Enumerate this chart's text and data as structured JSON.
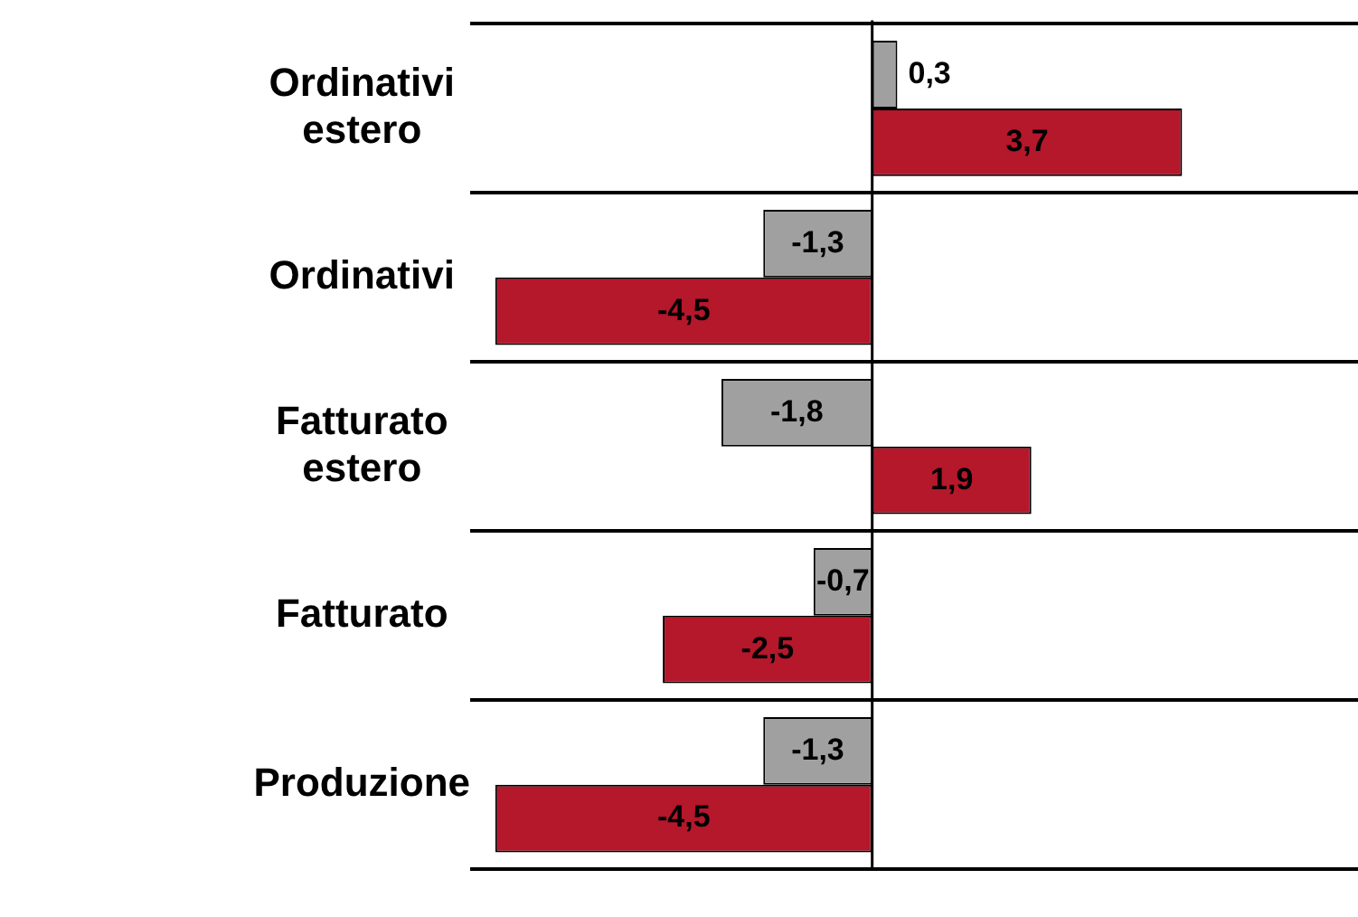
{
  "chart_data": {
    "type": "bar",
    "orientation": "horizontal",
    "categories": [
      "Ordinativi estero",
      "Ordinativi",
      "Fatturato estero",
      "Fatturato",
      "Produzione"
    ],
    "series": [
      {
        "color": "#a0a0a0",
        "values": [
          0.3,
          -1.3,
          -1.8,
          -0.7,
          -1.3
        ],
        "value_labels": [
          "0,3",
          "-1,3",
          "-1,8",
          "-0,7",
          "-1,3"
        ]
      },
      {
        "color": "#b5172b",
        "values": [
          3.7,
          -4.5,
          1.9,
          -2.5,
          -4.5
        ],
        "value_labels": [
          "3,7",
          "-4,5",
          "1,9",
          "-2,5",
          "-4,5"
        ]
      }
    ],
    "xlim": [
      -4.8,
      5.8
    ],
    "tick_labels": "y",
    "grid": "y",
    "legend": false
  }
}
